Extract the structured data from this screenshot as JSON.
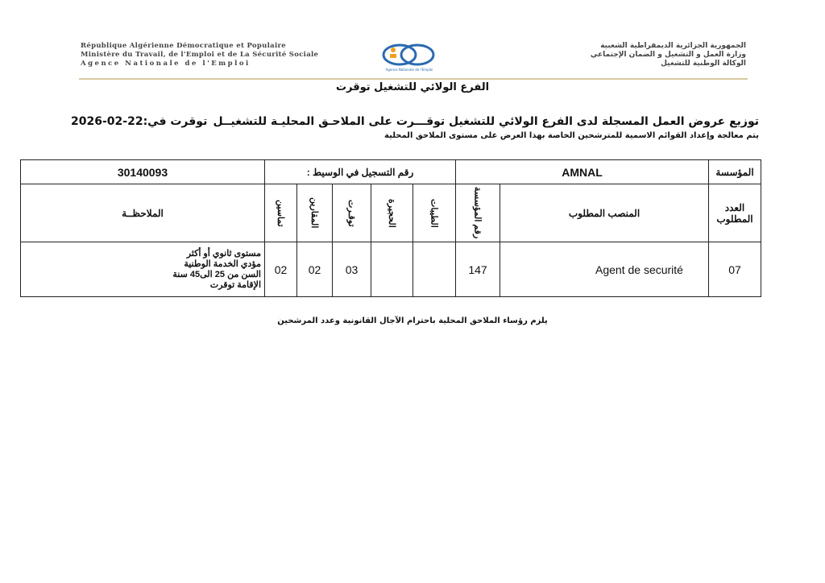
{
  "header": {
    "fr_lines": [
      "République Algérienne Démocratique et Populaire",
      "Ministère du Travail, de l'Emploi et de La Sécurité Sociale",
      "Agence Nationale de l'Emploi"
    ],
    "ar_lines": [
      "الجمهورية الجزائرية الديمقراطية الشعبية",
      "وزارة العمل و التشغيل و الضمان الإجتماعي",
      "الوكالة الوطنية للتشغيل"
    ],
    "logo_text": "Agence Nationale de l'Emploi",
    "branch": "الفرع الولائي للتشغيل توقرت"
  },
  "title": "توزيع عروض العمل المسجلة لدى الفرع الولائي للتشغيل توقـــرت على الملاحـق المحليـة للتشغيــل",
  "date": "توقرت في:22-02-2026",
  "subtitle": "يتم معالجة وإعداد القوائم الاسمية للمترشحين الخاصة بهذا العرض على مستوى الملاحق المحلية",
  "table": {
    "company_label": "المؤسسة",
    "company": "AMNAL",
    "reg_label": "رقم التسجيل في الوسيط :",
    "reg_number": "30140093",
    "headers": [
      "العدد المطلوب",
      "المنصب المطلوب",
      "رقم المؤسسة",
      "الطيبات",
      "الحجيرة",
      "توقـرت",
      "المقارين",
      "تماسين",
      "الملاحظــة"
    ],
    "row": {
      "count": "07",
      "post": "Agent de securité",
      "company_no": "147",
      "taibet": "",
      "hadjira": "",
      "touggourt": "03",
      "megarine": "02",
      "temacine": "02",
      "notes": [
        "مستوى ثانوي أو أكثر",
        "مؤدي الخدمة الوطنية",
        "السن من 25 الى45 سنة",
        "الإقامة توقرت"
      ]
    }
  },
  "footer": "يلزم رؤساء الملاحق المحلية باحترام الآجال القانونية وعدد المرشحين"
}
